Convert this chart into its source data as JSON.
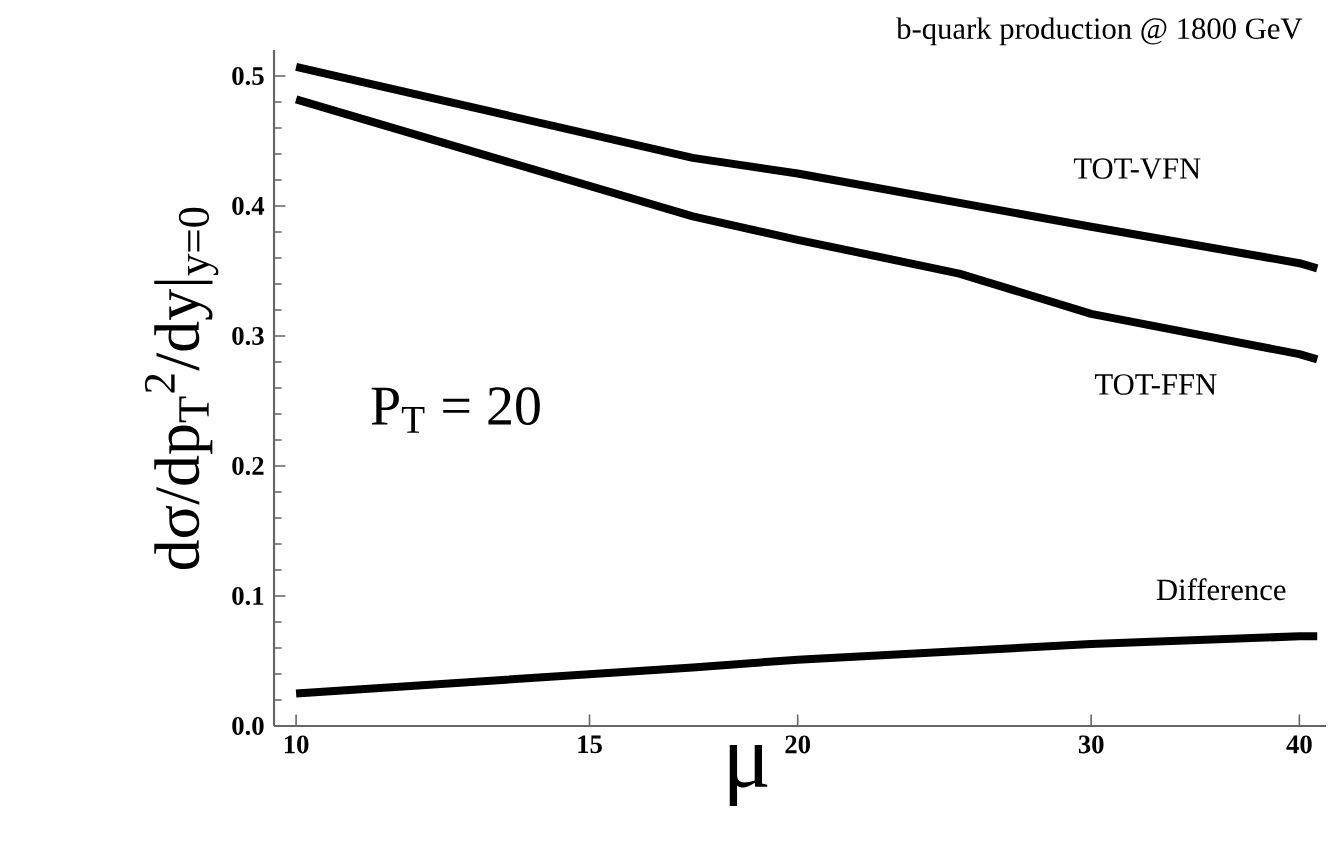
{
  "chart_data": {
    "type": "line",
    "title": "b-quark production @ 1800 GeV",
    "xlabel": "μ",
    "ylabel": "dσ/dp$_{T}$$^{2}$/dy|$_{y=0}$",
    "annotations": [
      "P$_{T}$ = 20"
    ],
    "log": "x",
    "xlim": [
      9.7,
      41.5
    ],
    "ylim": [
      0,
      0.52
    ],
    "xticks": [
      10,
      15,
      20,
      30,
      40
    ],
    "yticks": [
      {
        "value": 0,
        "label": "0.0"
      },
      {
        "value": 0.1,
        "label": "0.1"
      },
      {
        "value": 0.2,
        "label": "0.2"
      },
      {
        "value": 0.3,
        "label": "0.3"
      },
      {
        "value": 0.4,
        "label": "0.4"
      },
      {
        "value": 0.5,
        "label": "0.5"
      }
    ],
    "marker": "none",
    "line_style": "solid",
    "series": [
      {
        "name": "TOT-VFN",
        "color": "#000000",
        "x": [
          10,
          17.3,
          20,
          30,
          40,
          41
        ],
        "values": [
          0.507,
          0.437,
          0.425,
          0.384,
          0.356,
          0.352
        ]
      },
      {
        "name": "TOT-FFN",
        "color": "#000000",
        "x": [
          10,
          17.3,
          20,
          25,
          30,
          40,
          41
        ],
        "values": [
          0.482,
          0.392,
          0.374,
          0.348,
          0.317,
          0.286,
          0.282
        ]
      },
      {
        "name": "Difference",
        "color": "#000000",
        "x": [
          10,
          17.3,
          20,
          30,
          40,
          41
        ],
        "values": [
          0.025,
          0.045,
          0.051,
          0.063,
          0.069,
          0.069
        ]
      }
    ]
  }
}
